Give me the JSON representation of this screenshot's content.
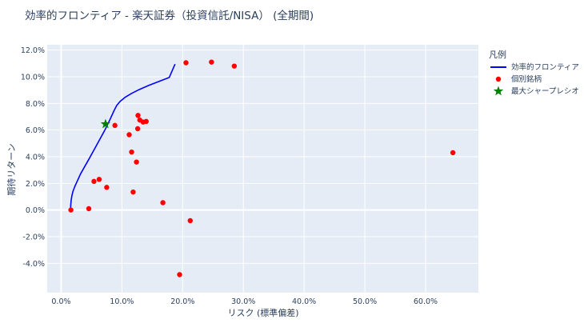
{
  "chart_data": {
    "type": "scatter",
    "title": "効率的フロンティア - 楽天証券（投資信託/NISA） (全期間)",
    "xlabel": "リスク (標準偏差)",
    "ylabel": "期待リターン",
    "xlim": [
      -0.023,
      0.687
    ],
    "ylim": [
      -0.062,
      0.124
    ],
    "xticks": [
      0.0,
      0.1,
      0.2,
      0.3,
      0.4,
      0.5,
      0.6
    ],
    "xtick_labels": [
      "0.0%",
      "10.0%",
      "20.0%",
      "30.0%",
      "40.0%",
      "50.0%",
      "60.0%"
    ],
    "yticks": [
      -0.04,
      -0.02,
      0.0,
      0.02,
      0.04,
      0.06,
      0.08,
      0.1,
      0.12
    ],
    "ytick_labels": [
      "-4.0%",
      "-2.0%",
      "0.0%",
      "2.0%",
      "4.0%",
      "6.0%",
      "8.0%",
      "10.0%",
      "12.0%"
    ],
    "grid": true,
    "legend_position": "top-right",
    "legend": {
      "title": "凡例",
      "items": [
        {
          "name": "効率的フロンティア",
          "marker": "line",
          "color": "#0000ff"
        },
        {
          "name": "個別銘柄",
          "marker": "circle",
          "color": "#ff0000"
        },
        {
          "name": "最大シャープレシオ",
          "marker": "star",
          "color": "#008000"
        }
      ]
    },
    "series": [
      {
        "name": "効率的フロンティア",
        "kind": "line",
        "color": "#0000ff",
        "x": [
          0.0155,
          0.0158,
          0.0165,
          0.0178,
          0.0198,
          0.0228,
          0.0268,
          0.0318,
          0.038,
          0.0455,
          0.054,
          0.063,
          0.0725,
          0.0805,
          0.087,
          0.0915,
          0.097,
          0.105,
          0.116,
          0.129,
          0.144,
          0.161,
          0.178,
          0.1875
        ],
        "y": [
          0.0005,
          0.004,
          0.0075,
          0.011,
          0.0145,
          0.018,
          0.022,
          0.027,
          0.032,
          0.038,
          0.045,
          0.0525,
          0.0605,
          0.068,
          0.0745,
          0.0785,
          0.0815,
          0.0845,
          0.0875,
          0.0905,
          0.0935,
          0.0965,
          0.0995,
          0.1095
        ]
      },
      {
        "name": "個別銘柄",
        "kind": "scatter",
        "color": "#ff0000",
        "x": [
          0.016,
          0.0455,
          0.054,
          0.0625,
          0.075,
          0.0885,
          0.112,
          0.116,
          0.1185,
          0.124,
          0.1265,
          0.1295,
          0.126,
          0.135,
          0.14,
          0.1675,
          0.2055,
          0.2125,
          0.2475,
          0.285,
          0.195,
          0.645
        ],
        "y": [
          0.0,
          0.001,
          0.0215,
          0.023,
          0.017,
          0.0635,
          0.0565,
          0.0435,
          0.0135,
          0.036,
          0.071,
          0.0675,
          0.061,
          0.066,
          0.0665,
          0.0055,
          0.1105,
          -0.008,
          0.111,
          0.108,
          -0.0485,
          0.043
        ]
      },
      {
        "name": "最大シャープレシオ",
        "kind": "scatter",
        "marker": "star",
        "color": "#008000",
        "x": [
          0.073
        ],
        "y": [
          0.0645
        ]
      }
    ]
  }
}
